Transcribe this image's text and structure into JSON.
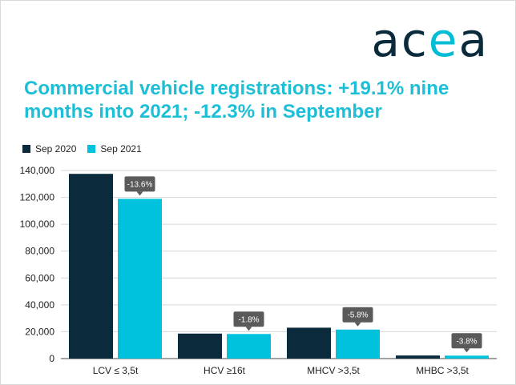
{
  "logo": {
    "text_a": "ac",
    "text_e": "e",
    "text_b": "a"
  },
  "title": "Commercial vehicle registrations: +19.1% nine months into 2021; -12.3% in September",
  "colors": {
    "sep2020": "#0b2b3c",
    "sep2021": "#00c2dc",
    "title": "#1cbfd6",
    "label_bg": "#5a5a5a"
  },
  "chart_data": {
    "type": "bar",
    "categories": [
      "LCV ≤ 3,5t",
      "HCV ≥16t",
      "MHCV >3,5t",
      "MHBC >3,5t"
    ],
    "series": [
      {
        "name": "Sep 2020",
        "values": [
          137500,
          18600,
          23000,
          2300
        ]
      },
      {
        "name": "Sep 2021",
        "values": [
          118900,
          18300,
          21600,
          2200
        ]
      }
    ],
    "change_labels": [
      "-13.6%",
      "-1.8%",
      "-5.8%",
      "-3.8%"
    ],
    "yticks": [
      "0",
      "20,000",
      "40,000",
      "60,000",
      "80,000",
      "100,000",
      "120,000",
      "140,000"
    ],
    "ylim": [
      0,
      140000
    ],
    "legend_position": "top-left",
    "grid": true
  }
}
